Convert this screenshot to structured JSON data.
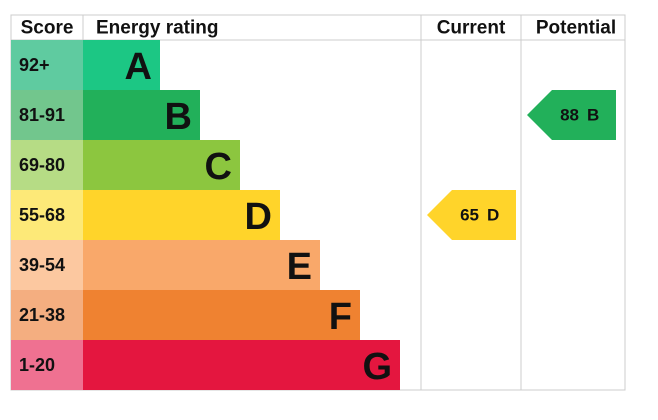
{
  "headers": {
    "score": "Score",
    "rating": "Energy rating",
    "current": "Current",
    "potential": "Potential"
  },
  "bands": [
    {
      "score": "92+",
      "letter": "A",
      "color": "#1cc784",
      "score_color": "#5fcba0"
    },
    {
      "score": "81-91",
      "letter": "B",
      "color": "#22b05a",
      "score_color": "#72c68d"
    },
    {
      "score": "69-80",
      "letter": "C",
      "color": "#8cc63f",
      "score_color": "#b6dc85"
    },
    {
      "score": "55-68",
      "letter": "D",
      "color": "#ffd42a",
      "score_color": "#fde978"
    },
    {
      "score": "39-54",
      "letter": "E",
      "color": "#f9a86a",
      "score_color": "#fcc8a0"
    },
    {
      "score": "21-38",
      "letter": "F",
      "color": "#ef8231",
      "score_color": "#f4ae80"
    },
    {
      "score": "1-20",
      "letter": "G",
      "color": "#e4163f",
      "score_color": "#ef7191"
    }
  ],
  "current": {
    "value": 65,
    "rating": "D"
  },
  "potential": {
    "value": 88,
    "rating": "B"
  }
}
